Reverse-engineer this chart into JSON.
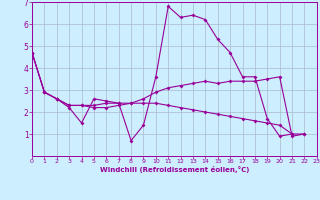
{
  "xlabel": "Windchill (Refroidissement éolien,°C)",
  "bg_color": "#cceeff",
  "line_color": "#990099",
  "grid_color": "#aabbcc",
  "xlim": [
    0,
    23
  ],
  "ylim": [
    0,
    7
  ],
  "xticks": [
    0,
    1,
    2,
    3,
    4,
    5,
    6,
    7,
    8,
    9,
    10,
    11,
    12,
    13,
    14,
    15,
    16,
    17,
    18,
    19,
    20,
    21,
    22,
    23
  ],
  "yticks": [
    1,
    2,
    3,
    4,
    5,
    6,
    7
  ],
  "line1_x": [
    0,
    1,
    2,
    3,
    4,
    5,
    6,
    7,
    8,
    9,
    10,
    11,
    12,
    13,
    14,
    15,
    16,
    17,
    18,
    19,
    20,
    21
  ],
  "line1_y": [
    4.7,
    2.9,
    2.6,
    2.2,
    1.5,
    2.6,
    2.5,
    2.4,
    0.7,
    1.4,
    3.6,
    6.8,
    6.3,
    6.4,
    6.2,
    5.3,
    4.7,
    3.6,
    3.6,
    1.7,
    0.9,
    1.0
  ],
  "line2_x": [
    0,
    1,
    2,
    3,
    4,
    5,
    6,
    7,
    8,
    9,
    10,
    11,
    12,
    13,
    14,
    15,
    16,
    17,
    18,
    19,
    20,
    21,
    22
  ],
  "line2_y": [
    4.7,
    2.9,
    2.6,
    2.3,
    2.3,
    2.2,
    2.2,
    2.3,
    2.4,
    2.6,
    2.9,
    3.1,
    3.2,
    3.3,
    3.4,
    3.3,
    3.4,
    3.4,
    3.4,
    3.5,
    3.6,
    0.9,
    1.0
  ],
  "line3_x": [
    0,
    1,
    2,
    3,
    4,
    5,
    6,
    7,
    8,
    9,
    10,
    11,
    12,
    13,
    14,
    15,
    16,
    17,
    18,
    19,
    20,
    21,
    22
  ],
  "line3_y": [
    4.7,
    2.9,
    2.6,
    2.3,
    2.3,
    2.3,
    2.4,
    2.4,
    2.4,
    2.4,
    2.4,
    2.3,
    2.2,
    2.1,
    2.0,
    1.9,
    1.8,
    1.7,
    1.6,
    1.5,
    1.4,
    1.0,
    1.0
  ]
}
